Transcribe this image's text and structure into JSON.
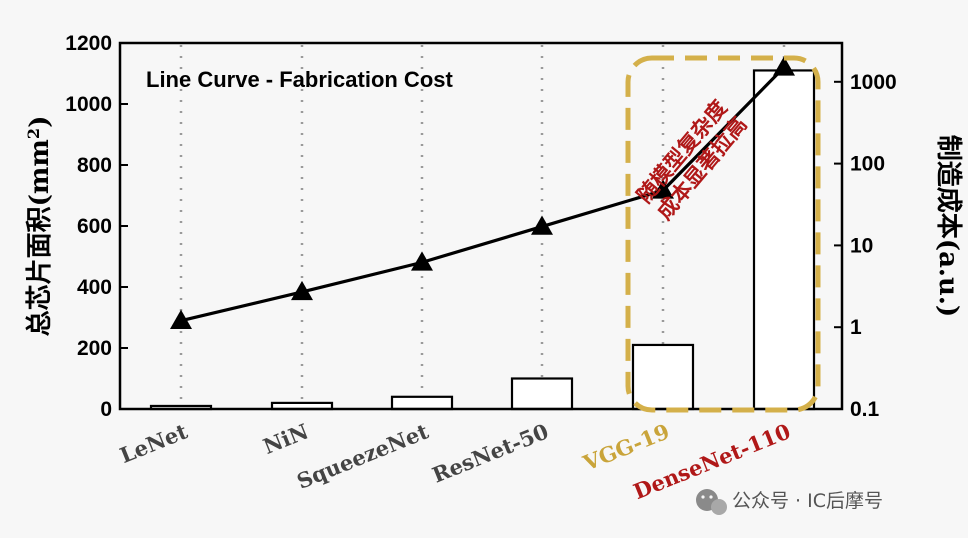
{
  "chart_data": {
    "type": "bar+line",
    "title": "Line Curve - Fabrication Cost",
    "categories": [
      "LeNet",
      "NiN",
      "SqueezeNet",
      "ResNet-50",
      "VGG-19",
      "DenseNet-110"
    ],
    "category_colors": [
      "#444444",
      "#444444",
      "#444444",
      "#444444",
      "#c9a43a",
      "#b01818"
    ],
    "bar_series": {
      "axis": "left",
      "values": [
        10,
        20,
        40,
        100,
        210,
        1110
      ]
    },
    "line_series": {
      "axis": "right",
      "values": [
        1.2,
        2.7,
        6.2,
        17,
        47,
        1500
      ]
    },
    "y_left": {
      "label_main": "总芯片面积(mm",
      "label_sup": "2",
      "label_end": ")",
      "lim": [
        0,
        1200
      ],
      "ticks": [
        "0",
        "200",
        "400",
        "600",
        "800",
        "1000",
        "1200"
      ]
    },
    "y_right": {
      "label": "制造成本(a.u.)",
      "scale": "log",
      "lim": [
        0.1,
        2000
      ],
      "ticks": [
        "0.1",
        "1",
        "10",
        "100",
        "1000"
      ]
    },
    "grid": "vertical-dotted",
    "highlight": {
      "color": "#d4b04a",
      "covers": [
        "VGG-19",
        "DenseNet-110"
      ]
    },
    "annotation": {
      "lines": [
        "随模型复杂度",
        "成本显著拉高"
      ],
      "color": "#b01818"
    }
  },
  "watermark": {
    "text": "公众号 · IC后摩号",
    "icon": "wechat-icon"
  }
}
